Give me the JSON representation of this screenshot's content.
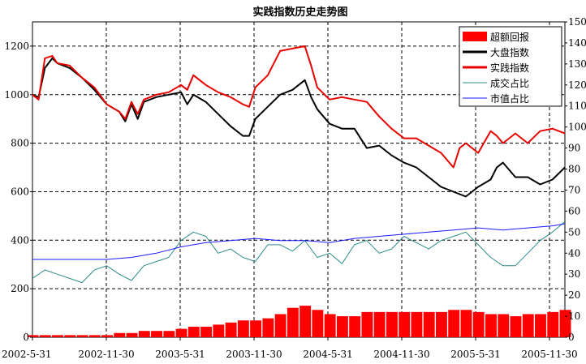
{
  "chart_data": {
    "type": "line",
    "title": "实践指数历史走势图",
    "xlabel": "",
    "ylabel": "",
    "y2label": "",
    "legend_position": "top-right",
    "grid": true,
    "ylim": [
      0,
      1300
    ],
    "y2lim": [
      0,
      150
    ],
    "y_ticks": [
      0,
      200,
      400,
      600,
      800,
      1000,
      1200
    ],
    "y2_ticks": [
      0,
      10,
      20,
      30,
      40,
      50,
      60,
      70,
      80,
      90,
      100,
      110,
      120,
      130,
      140,
      150
    ],
    "x_ticks": [
      "2002-5-31",
      "2002-11-30",
      "2003-5-31",
      "2003-11-30",
      "2004-5-31",
      "2004-11-30",
      "2005-5-31",
      "2005-11-30"
    ],
    "x_range": [
      0,
      43
    ],
    "legend": [
      "超额回报",
      "大盘指数",
      "实践指数",
      "成交占比",
      "市值占比"
    ],
    "colors": {
      "excess": "#ff0000",
      "market": "#000000",
      "practice": "#e60000",
      "turnover": "#2e8b8b",
      "cap": "#1a1aff"
    },
    "series": [
      {
        "name": "大盘指数",
        "axis": "left",
        "kind": "line",
        "x": [
          0,
          0.5,
          1,
          1.6,
          2,
          3,
          4,
          5,
          6,
          7,
          7.5,
          8,
          8.5,
          9,
          10,
          11,
          12,
          12.5,
          13,
          14,
          15,
          16,
          17,
          17.5,
          18,
          19,
          20,
          21,
          22,
          22.5,
          23,
          24,
          25,
          26,
          27,
          28,
          29,
          30,
          31,
          32,
          33,
          34,
          34.5,
          35,
          36,
          37,
          37.5,
          38,
          39,
          40,
          41,
          42,
          43
        ],
        "y": [
          1000,
          990,
          1110,
          1150,
          1130,
          1110,
          1070,
          1020,
          960,
          930,
          890,
          960,
          900,
          970,
          990,
          1000,
          1010,
          960,
          1000,
          970,
          920,
          870,
          830,
          830,
          900,
          950,
          1000,
          1020,
          1060,
          990,
          940,
          880,
          860,
          860,
          780,
          790,
          750,
          720,
          700,
          660,
          620,
          600,
          590,
          580,
          620,
          650,
          700,
          720,
          660,
          660,
          630,
          650,
          700
        ]
      },
      {
        "name": "实践指数",
        "axis": "left",
        "kind": "line",
        "x": [
          0,
          0.5,
          1,
          1.6,
          2,
          3,
          4,
          5,
          6,
          7,
          7.5,
          8,
          8.5,
          9,
          10,
          11,
          12,
          12.5,
          13,
          14,
          15,
          16,
          17,
          17.5,
          18,
          19,
          20,
          21,
          22,
          22.5,
          23,
          24,
          25,
          26,
          27,
          28,
          29,
          30,
          31,
          32,
          33,
          34,
          34.5,
          35,
          36,
          37,
          37.5,
          38,
          39,
          40,
          41,
          42,
          43
        ],
        "y": [
          1000,
          980,
          1150,
          1160,
          1130,
          1120,
          1070,
          1030,
          960,
          930,
          900,
          970,
          920,
          980,
          1000,
          1010,
          1040,
          1020,
          1080,
          1040,
          1010,
          990,
          960,
          950,
          1030,
          1080,
          1180,
          1190,
          1200,
          1120,
          1030,
          980,
          990,
          980,
          970,
          910,
          860,
          820,
          820,
          790,
          760,
          700,
          780,
          800,
          760,
          850,
          830,
          800,
          840,
          800,
          850,
          860,
          840
        ]
      },
      {
        "name": "成交占比",
        "axis": "right",
        "kind": "line",
        "x": [
          0,
          1,
          2,
          3,
          4,
          5,
          6,
          7,
          8,
          9,
          10,
          11,
          12,
          13,
          14,
          15,
          16,
          17,
          18,
          19,
          20,
          21,
          22,
          23,
          24,
          25,
          26,
          27,
          28,
          29,
          30,
          31,
          32,
          33,
          34,
          35,
          36,
          37,
          38,
          39,
          40,
          41,
          42,
          43
        ],
        "y": [
          28,
          32,
          30,
          28,
          26,
          32,
          34,
          30,
          27,
          34,
          36,
          38,
          46,
          50,
          48,
          40,
          42,
          38,
          36,
          44,
          44,
          41,
          46,
          38,
          40,
          35,
          44,
          46,
          40,
          42,
          48,
          45,
          42,
          46,
          48,
          50,
          44,
          38,
          34,
          34,
          40,
          46,
          50,
          55
        ]
      },
      {
        "name": "市值占比",
        "axis": "right",
        "kind": "line",
        "x": [
          0,
          2,
          4,
          6,
          8,
          10,
          12,
          14,
          16,
          18,
          20,
          22,
          24,
          26,
          28,
          30,
          32,
          34,
          36,
          38,
          40,
          42,
          43
        ],
        "y": [
          37,
          37,
          37,
          37,
          38,
          40,
          43,
          45,
          46,
          47,
          46,
          46,
          45,
          47,
          48,
          49,
          50,
          51,
          52,
          51,
          52,
          53,
          54
        ]
      },
      {
        "name": "超额回报",
        "axis": "right",
        "kind": "bar",
        "x": [
          0,
          1,
          2,
          3,
          4,
          5,
          6,
          7,
          8,
          9,
          10,
          11,
          12,
          13,
          14,
          15,
          16,
          17,
          18,
          19,
          20,
          21,
          22,
          23,
          24,
          25,
          26,
          27,
          28,
          29,
          30,
          31,
          32,
          33,
          34,
          35,
          36,
          37,
          38,
          39,
          40,
          41,
          42,
          43
        ],
        "y": [
          1,
          1,
          1,
          1,
          1,
          1,
          1,
          2,
          2,
          3,
          3,
          3,
          4,
          5,
          5,
          6,
          7,
          8,
          8,
          9,
          11,
          14,
          15,
          13,
          11,
          10,
          10,
          12,
          12,
          12,
          12,
          12,
          12,
          12,
          13,
          13,
          12,
          11,
          11,
          10,
          11,
          11,
          12,
          13
        ]
      }
    ]
  }
}
